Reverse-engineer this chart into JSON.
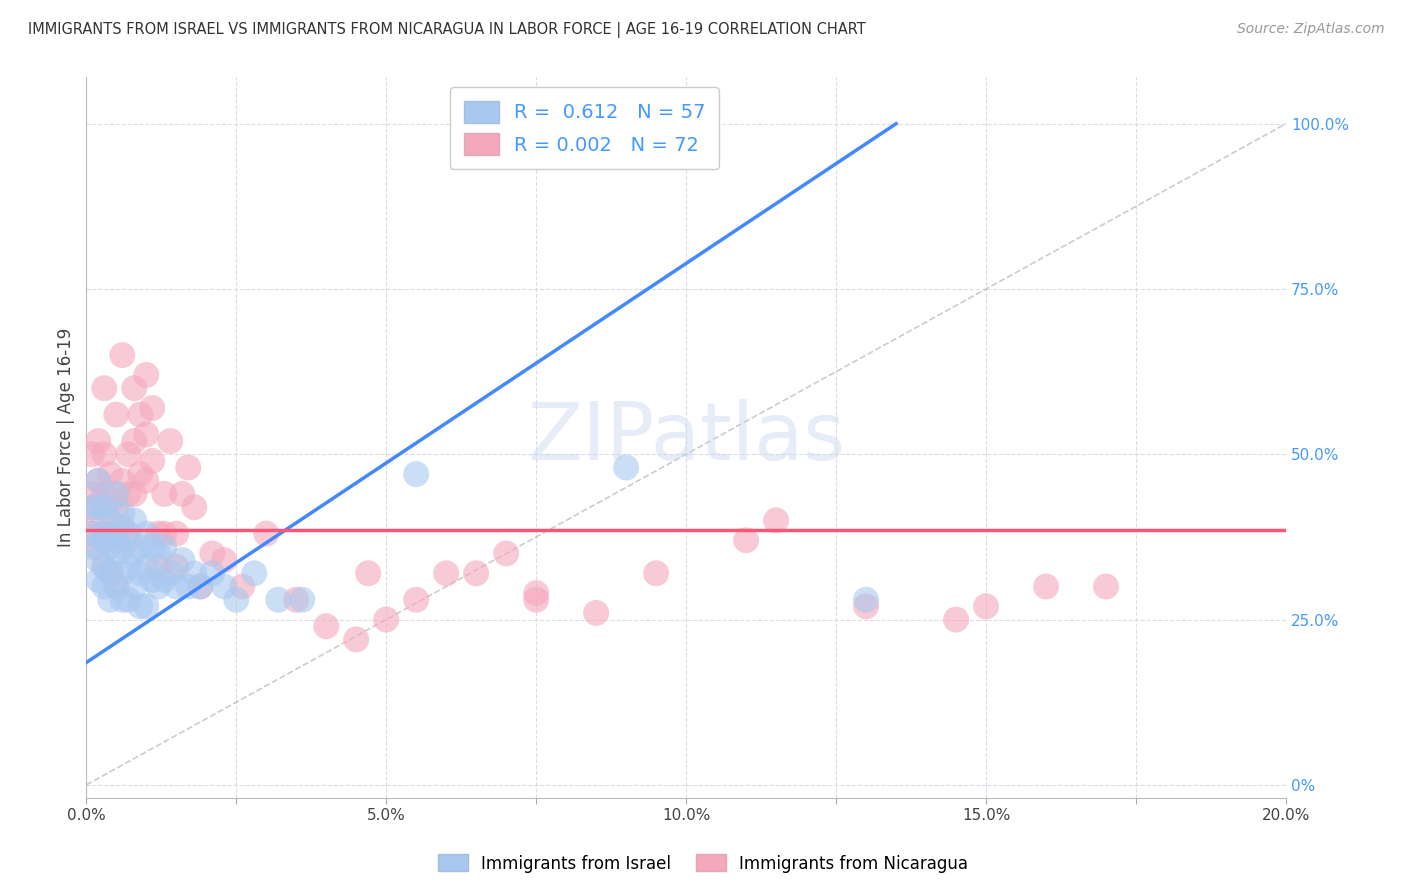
{
  "title": "IMMIGRANTS FROM ISRAEL VS IMMIGRANTS FROM NICARAGUA IN LABOR FORCE | AGE 16-19 CORRELATION CHART",
  "source": "Source: ZipAtlas.com",
  "ylabel": "In Labor Force | Age 16-19",
  "israel_R": 0.612,
  "israel_N": 57,
  "nicaragua_R": 0.002,
  "nicaragua_N": 72,
  "israel_color": "#A8C8F0",
  "nicaragua_color": "#F4A8BC",
  "israel_line_color": "#4488FF",
  "nicaragua_line_color": "#FF5577",
  "ref_line_color": "#AAAAAA",
  "xlim": [
    0.0,
    0.2
  ],
  "ylim": [
    -0.02,
    1.07
  ],
  "xtick_vals": [
    0.0,
    0.025,
    0.05,
    0.075,
    0.1,
    0.125,
    0.15,
    0.175,
    0.2
  ],
  "xtick_labels": [
    "0.0%",
    "",
    "5.0%",
    "",
    "10.0%",
    "",
    "15.0%",
    "",
    "20.0%"
  ],
  "ytick_vals_right": [
    0.0,
    0.25,
    0.5,
    0.75,
    1.0
  ],
  "ytick_labels_right": [
    "0%",
    "25.0%",
    "50.0%",
    "75.0%",
    "100.0%"
  ],
  "background_color": "#FFFFFF",
  "grid_color": "#DCDCE8",
  "watermark": "ZIPatlas",
  "israel_line_x0": 0.0,
  "israel_line_y0": 0.185,
  "israel_line_x1": 0.135,
  "israel_line_y1": 1.0,
  "nicaragua_line_y": 0.385,
  "israel_scatter_x": [
    0.001,
    0.001,
    0.001,
    0.002,
    0.002,
    0.002,
    0.002,
    0.003,
    0.003,
    0.003,
    0.003,
    0.003,
    0.004,
    0.004,
    0.004,
    0.004,
    0.005,
    0.005,
    0.005,
    0.005,
    0.006,
    0.006,
    0.006,
    0.006,
    0.007,
    0.007,
    0.007,
    0.008,
    0.008,
    0.008,
    0.009,
    0.009,
    0.009,
    0.01,
    0.01,
    0.01,
    0.011,
    0.011,
    0.012,
    0.012,
    0.013,
    0.013,
    0.014,
    0.015,
    0.016,
    0.017,
    0.018,
    0.019,
    0.021,
    0.023,
    0.025,
    0.028,
    0.032,
    0.036,
    0.055,
    0.09,
    0.13
  ],
  "israel_scatter_y": [
    0.36,
    0.42,
    0.38,
    0.34,
    0.31,
    0.42,
    0.46,
    0.37,
    0.42,
    0.33,
    0.38,
    0.3,
    0.36,
    0.32,
    0.4,
    0.28,
    0.38,
    0.35,
    0.3,
    0.44,
    0.36,
    0.32,
    0.41,
    0.28,
    0.38,
    0.33,
    0.28,
    0.4,
    0.35,
    0.3,
    0.36,
    0.32,
    0.27,
    0.38,
    0.33,
    0.27,
    0.36,
    0.31,
    0.35,
    0.3,
    0.36,
    0.31,
    0.32,
    0.3,
    0.34,
    0.3,
    0.32,
    0.3,
    0.32,
    0.3,
    0.28,
    0.32,
    0.28,
    0.28,
    0.47,
    0.48,
    0.28
  ],
  "nicaragua_scatter_x": [
    0.001,
    0.001,
    0.001,
    0.001,
    0.002,
    0.002,
    0.002,
    0.002,
    0.003,
    0.003,
    0.003,
    0.003,
    0.003,
    0.004,
    0.004,
    0.004,
    0.004,
    0.005,
    0.005,
    0.005,
    0.005,
    0.006,
    0.006,
    0.006,
    0.007,
    0.007,
    0.007,
    0.008,
    0.008,
    0.008,
    0.009,
    0.009,
    0.01,
    0.01,
    0.01,
    0.011,
    0.011,
    0.012,
    0.012,
    0.013,
    0.013,
    0.014,
    0.015,
    0.015,
    0.016,
    0.017,
    0.018,
    0.019,
    0.021,
    0.023,
    0.026,
    0.03,
    0.035,
    0.04,
    0.047,
    0.055,
    0.065,
    0.075,
    0.085,
    0.095,
    0.11,
    0.13,
    0.145,
    0.15,
    0.16,
    0.17,
    0.115,
    0.045,
    0.05,
    0.06,
    0.07,
    0.075
  ],
  "nicaragua_scatter_y": [
    0.42,
    0.5,
    0.44,
    0.38,
    0.46,
    0.4,
    0.36,
    0.52,
    0.44,
    0.38,
    0.5,
    0.33,
    0.6,
    0.43,
    0.38,
    0.32,
    0.47,
    0.42,
    0.37,
    0.3,
    0.56,
    0.46,
    0.39,
    0.65,
    0.5,
    0.44,
    0.37,
    0.6,
    0.52,
    0.44,
    0.56,
    0.47,
    0.62,
    0.53,
    0.46,
    0.57,
    0.49,
    0.38,
    0.33,
    0.44,
    0.38,
    0.52,
    0.38,
    0.33,
    0.44,
    0.48,
    0.42,
    0.3,
    0.35,
    0.34,
    0.3,
    0.38,
    0.28,
    0.24,
    0.32,
    0.28,
    0.32,
    0.29,
    0.26,
    0.32,
    0.37,
    0.27,
    0.25,
    0.27,
    0.3,
    0.3,
    0.4,
    0.22,
    0.25,
    0.32,
    0.35,
    0.28
  ]
}
